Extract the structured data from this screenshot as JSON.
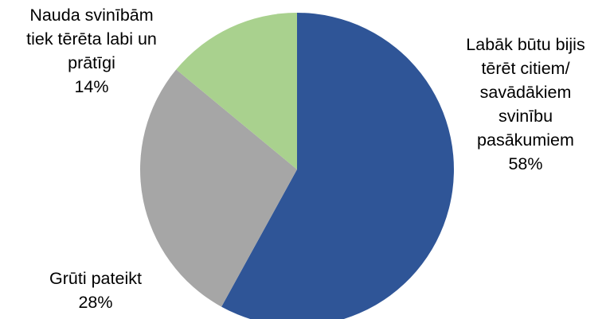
{
  "chart_data": {
    "type": "pie",
    "title": "",
    "start_angle_deg": 0,
    "direction": "clockwise",
    "slices": [
      {
        "label_lines": [
          "Labāk būtu bijis",
          "tērēt citiem/",
          "savādākiem",
          "svinību",
          "pasākumiem"
        ],
        "value": 58,
        "value_label": "58%",
        "color": "#2f5597"
      },
      {
        "label_lines": [
          "Grūti pateikt"
        ],
        "value": 28,
        "value_label": "28%",
        "color": "#a6a6a6"
      },
      {
        "label_lines": [
          "Nauda svinībām",
          "tiek tērēta labi un",
          "prātīgi"
        ],
        "value": 14,
        "value_label": "14%",
        "color": "#a9d18e"
      }
    ]
  }
}
